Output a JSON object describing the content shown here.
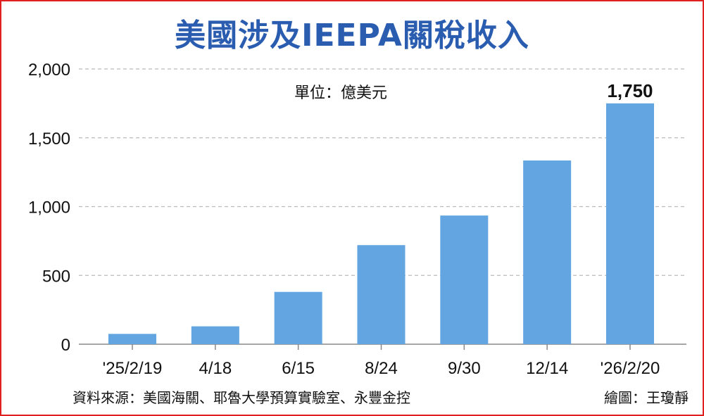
{
  "title": "美國涉及IEEPA關稅收入",
  "unit_label": "單位：億美元",
  "source": "資料來源：美國海關、耶魯大學預算實驗室、永豐金控",
  "credit": "繪圖：王瓊靜",
  "colors": {
    "title": "#2a5db0",
    "bar": "#62a5e0",
    "border": "#e02020",
    "grid": "#bbbbbb"
  },
  "chart_data": {
    "type": "bar",
    "title": "美國涉及IEEPA關稅收入",
    "categories": [
      "'25/2/19",
      "4/18",
      "6/15",
      "8/24",
      "9/30",
      "12/14",
      "'26/2/20"
    ],
    "values": [
      75,
      130,
      380,
      720,
      935,
      1335,
      1750
    ],
    "data_labels": [
      null,
      null,
      null,
      null,
      null,
      null,
      "1,750"
    ],
    "ylim": [
      0,
      2000
    ],
    "yticks": [
      0,
      500,
      1000,
      1500,
      2000
    ],
    "ytick_labels": [
      "0",
      "500",
      "1,000",
      "1,500",
      "2,000"
    ],
    "grid": true,
    "xlabel": "",
    "ylabel": ""
  }
}
